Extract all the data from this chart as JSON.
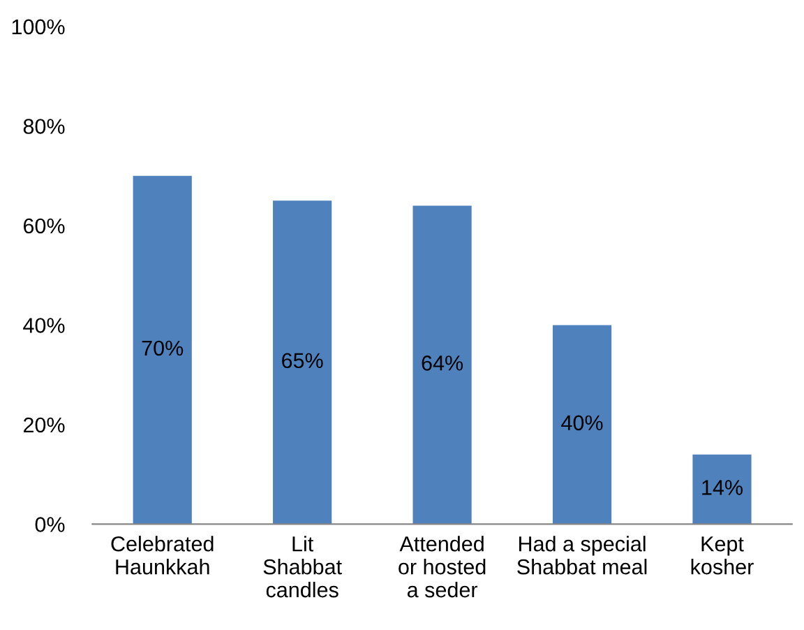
{
  "chart_data": {
    "type": "bar",
    "categories": [
      "Celebrated\nHaunkkah",
      "Lit\nShabbat\ncandles",
      "Attended\nor hosted\na seder",
      "Had a special\nShabbat meal",
      "Kept\nkosher"
    ],
    "values": [
      70,
      65,
      64,
      40,
      14
    ],
    "value_labels": [
      "70%",
      "65%",
      "64%",
      "40%",
      "14%"
    ],
    "color": "#4f81bd",
    "ylim": [
      0,
      100
    ],
    "yticks": [
      {
        "value": 0,
        "label": "0%"
      },
      {
        "value": 20,
        "label": "20%"
      },
      {
        "value": 40,
        "label": "40%"
      },
      {
        "value": 60,
        "label": "60%"
      },
      {
        "value": 80,
        "label": "80%"
      },
      {
        "value": 100,
        "label": "100%"
      }
    ],
    "grid": false,
    "legend": false
  }
}
